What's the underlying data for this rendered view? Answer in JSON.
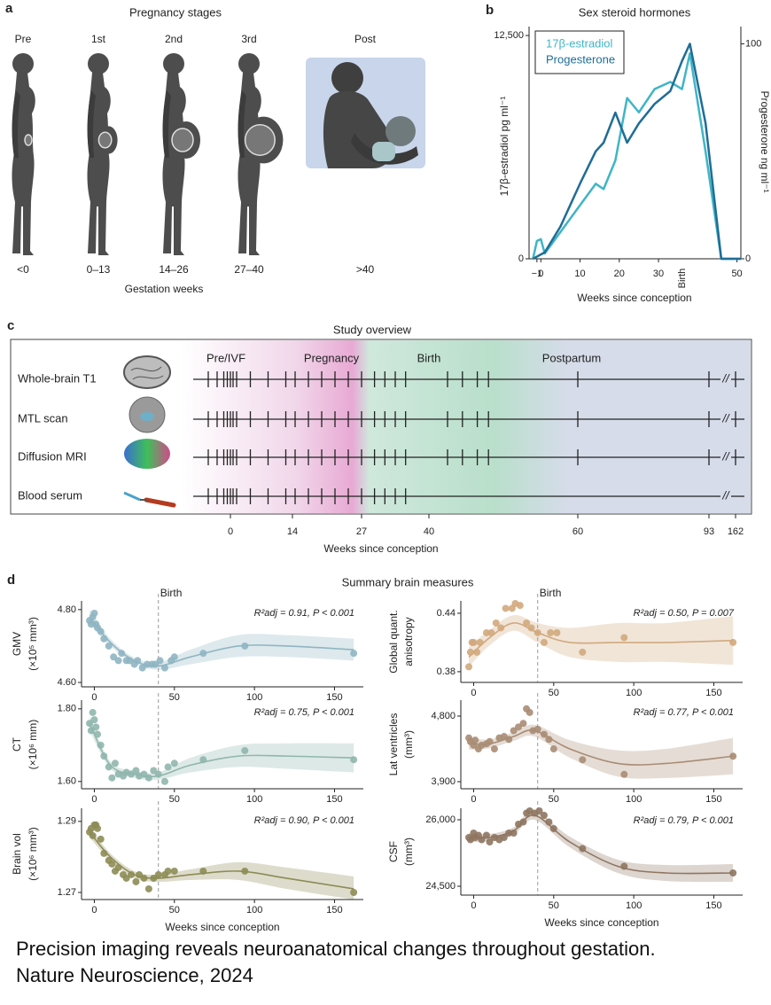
{
  "panel_a": {
    "label": "a",
    "title": "Pregnancy stages",
    "xlabel": "Gestation weeks",
    "stages": [
      {
        "name": "Pre",
        "weeks": "<0"
      },
      {
        "name": "1st",
        "weeks": "0–13"
      },
      {
        "name": "2nd",
        "weeks": "14–26"
      },
      {
        "name": "3rd",
        "weeks": "27–40"
      },
      {
        "name": "Post",
        "weeks": ">40"
      }
    ]
  },
  "panel_c": {
    "label": "c",
    "title": "Study overview",
    "xlabel": "Weeks since conception",
    "phases": [
      "Pre/IVF",
      "Pregnancy",
      "Birth",
      "Postpartum"
    ],
    "xticks": [
      0,
      14,
      27,
      40,
      60,
      93,
      162
    ],
    "rows": [
      {
        "name": "Whole-brain T1",
        "sessions": [
          -5,
          -3,
          -1.5,
          -0.7,
          0,
          0.6,
          1.4,
          4.5,
          8.5,
          12.5,
          14.5,
          17,
          19.5,
          22,
          24.5,
          27,
          29.5,
          31.5,
          33.5,
          35.5,
          42.5,
          44.5,
          46.5,
          48,
          60,
          93,
          162
        ]
      },
      {
        "name": "MTL scan",
        "sessions": [
          -5,
          -3,
          -1.5,
          -0.7,
          0,
          0.6,
          1.4,
          4.5,
          8.5,
          12.5,
          14.5,
          17,
          19.5,
          22,
          24.5,
          27,
          29.5,
          31.5,
          33.5,
          35.5,
          42.5,
          44.5,
          46.5,
          48,
          60,
          93,
          162
        ]
      },
      {
        "name": "Diffusion MRI",
        "sessions": [
          -5,
          -3,
          -1.5,
          -0.7,
          0,
          0.6,
          1.4,
          4.5,
          8.5,
          12.5,
          14.5,
          17,
          19.5,
          22,
          24.5,
          27,
          29.5,
          31.5,
          33.5,
          35.5,
          42.5,
          44.5,
          46.5,
          48,
          60,
          93,
          162
        ]
      },
      {
        "name": "Blood serum",
        "sessions": [
          -5,
          -3,
          -1.5,
          -0.7,
          0,
          0.6,
          1.4,
          4.5,
          8.5,
          12.5,
          14.5,
          17,
          19.5,
          22,
          24.5,
          27,
          29.5,
          31.5,
          33.5,
          35.5
        ]
      }
    ]
  },
  "panel_d": {
    "label": "d",
    "title": "Summary brain measures"
  },
  "caption": [
    "Precision imaging reveals neuroanatomical changes throughout gestation.",
    "Nature Neuroscience, 2024"
  ],
  "chart_data": [
    {
      "type": "line",
      "label": "b",
      "title": "Sex steroid hormones",
      "xlabel": "Weeks since conception",
      "ylabel": "17β-estradiol pg ml⁻¹",
      "y2label": "Progesterone ng ml⁻¹",
      "birth_label": "Birth",
      "xlim": [
        -3,
        51
      ],
      "xticks": [
        {
          "value": -1,
          "label": "−1"
        },
        0,
        10,
        20,
        30,
        50
      ],
      "ylim": [
        0,
        13000
      ],
      "yticks": [
        0,
        {
          "value": 12500,
          "label": "12,500"
        }
      ],
      "y2lim": [
        0,
        108
      ],
      "y2ticks": [
        0,
        100
      ],
      "x": [
        -2,
        -1,
        0,
        1,
        5,
        10,
        14,
        16,
        19,
        22,
        25,
        29,
        33,
        36,
        38,
        42,
        46,
        51
      ],
      "series": [
        {
          "name": "17β-estradiol",
          "color": "#3fb5c6",
          "values": [
            0,
            1000,
            1100,
            300,
            1500,
            3000,
            4200,
            3900,
            5500,
            9000,
            8200,
            9500,
            9900,
            9500,
            11500,
            6000,
            0,
            0
          ]
        },
        {
          "name": "Progesterone",
          "color": "#1f6d96",
          "axis": "y2",
          "values": [
            0,
            1,
            2,
            3,
            15,
            35,
            50,
            54,
            68,
            54,
            63,
            72,
            78,
            92,
            100,
            63,
            0,
            0
          ]
        }
      ]
    },
    {
      "type": "scatter",
      "ylabel": [
        "GMV",
        "(×10⁵ mm³)"
      ],
      "color": "#8fb5c2",
      "annotation": "R²adj = 0.91, P < 0.001",
      "birth": 40,
      "birth_label": "Birth",
      "xlim": [
        -8,
        168
      ],
      "xticks": [
        0,
        50,
        100,
        150
      ],
      "ylim": [
        4.588,
        4.824
      ],
      "yticks": [
        {
          "value": 4.8,
          "label": "4.80"
        },
        {
          "value": 4.6,
          "label": "4.60"
        }
      ],
      "x": [
        -3,
        -2,
        -1,
        0,
        1,
        2,
        4,
        6,
        9,
        12,
        15,
        17,
        20,
        22,
        25,
        27,
        30,
        33,
        36,
        38,
        41,
        44,
        48,
        50,
        68,
        94,
        162
      ],
      "values": [
        4.77,
        4.76,
        4.78,
        4.79,
        4.76,
        4.75,
        4.74,
        4.72,
        4.7,
        4.67,
        4.66,
        4.68,
        4.66,
        4.66,
        4.65,
        4.66,
        4.64,
        4.65,
        4.65,
        4.65,
        4.66,
        4.64,
        4.66,
        4.67,
        4.68,
        4.7,
        4.68
      ],
      "fit": {
        "x": [
          -3,
          10,
          25,
          40,
          60,
          90,
          120,
          162
        ],
        "values": [
          4.78,
          4.71,
          4.66,
          4.645,
          4.67,
          4.7,
          4.7,
          4.69
        ],
        "lower": [
          4.76,
          4.7,
          4.652,
          4.635,
          4.65,
          4.67,
          4.67,
          4.66
        ],
        "upper": [
          4.8,
          4.72,
          4.668,
          4.655,
          4.69,
          4.73,
          4.73,
          4.72
        ]
      }
    },
    {
      "type": "scatter",
      "ylabel": [
        "Global quant.",
        "anisotropy"
      ],
      "color": "#d1a97d",
      "annotation": "R²adj = 0.50, P = 0.007",
      "birth": 40,
      "birth_label": "Birth",
      "xlim": [
        -8,
        168
      ],
      "xticks": [
        0,
        50,
        100,
        150
      ],
      "ylim": [
        0.369,
        0.4527
      ],
      "yticks": [
        0.44,
        0.38
      ],
      "x": [
        -3,
        -2,
        -1,
        0,
        2,
        4,
        8,
        11,
        14,
        17,
        20,
        24,
        26,
        29,
        33,
        36,
        40,
        44,
        48,
        52,
        68,
        94,
        162
      ],
      "values": [
        0.385,
        0.4,
        0.41,
        0.41,
        0.4,
        0.41,
        0.42,
        0.42,
        0.43,
        0.425,
        0.445,
        0.445,
        0.45,
        0.448,
        0.43,
        0.425,
        0.42,
        0.41,
        0.42,
        0.42,
        0.4,
        0.415,
        0.41
      ],
      "fit": {
        "x": [
          -3,
          10,
          25,
          40,
          60,
          90,
          120,
          162
        ],
        "values": [
          0.395,
          0.415,
          0.43,
          0.42,
          0.41,
          0.41,
          0.41,
          0.412
        ],
        "lower": [
          0.385,
          0.407,
          0.422,
          0.41,
          0.395,
          0.39,
          0.39,
          0.387
        ],
        "upper": [
          0.405,
          0.423,
          0.438,
          0.43,
          0.425,
          0.43,
          0.43,
          0.437
        ]
      }
    },
    {
      "type": "scatter",
      "ylabel": [
        "CT",
        "(×10⁶ mm)"
      ],
      "color": "#8fb6ad",
      "annotation": "R²adj = 0.75, P < 0.001",
      "birth": 40,
      "xlim": [
        -8,
        168
      ],
      "xticks": [
        0,
        50,
        100,
        150
      ],
      "ylim": [
        1.58,
        1.824
      ],
      "yticks": [
        {
          "value": 1.8,
          "label": "1.80"
        },
        {
          "value": 1.6,
          "label": "1.60"
        }
      ],
      "x": [
        -3,
        -2,
        -1,
        0,
        1,
        2,
        4,
        6,
        9,
        11,
        13,
        15,
        18,
        20,
        23,
        26,
        28,
        31,
        34,
        37,
        40,
        44,
        46,
        50,
        68,
        94,
        162
      ],
      "values": [
        1.76,
        1.74,
        1.79,
        1.77,
        1.75,
        1.73,
        1.7,
        1.67,
        1.64,
        1.61,
        1.65,
        1.62,
        1.615,
        1.625,
        1.62,
        1.63,
        1.615,
        1.62,
        1.61,
        1.63,
        1.62,
        1.6,
        1.64,
        1.65,
        1.66,
        1.685,
        1.66
      ],
      "fit": {
        "x": [
          -3,
          10,
          25,
          40,
          60,
          90,
          120,
          162
        ],
        "values": [
          1.76,
          1.645,
          1.62,
          1.615,
          1.645,
          1.67,
          1.67,
          1.665
        ],
        "lower": [
          1.74,
          1.635,
          1.61,
          1.605,
          1.625,
          1.64,
          1.635,
          1.625
        ],
        "upper": [
          1.78,
          1.655,
          1.63,
          1.625,
          1.665,
          1.7,
          1.705,
          1.705
        ]
      }
    },
    {
      "type": "scatter",
      "ylabel": [
        "Lat ventricles",
        "(mm³)"
      ],
      "color": "#a88c74",
      "annotation": "R²adj = 0.77, P < 0.001",
      "birth": 40,
      "xlim": [
        -8,
        168
      ],
      "xticks": [
        0,
        50,
        100,
        150
      ],
      "ylim": [
        3803,
        5019
      ],
      "yticks": [
        {
          "value": 4800,
          "label": "4,800"
        },
        {
          "value": 3900,
          "label": "3,900"
        }
      ],
      "x": [
        -3,
        -2,
        0,
        1,
        3,
        5,
        8,
        10,
        13,
        16,
        19,
        22,
        25,
        28,
        31,
        33,
        35,
        37,
        40,
        44,
        47,
        50,
        68,
        94,
        162
      ],
      "values": [
        4500,
        4450,
        4400,
        4470,
        4350,
        4400,
        4420,
        4450,
        4350,
        4500,
        4520,
        4480,
        4600,
        4650,
        4700,
        4900,
        4850,
        4600,
        4620,
        4550,
        4480,
        4350,
        4200,
        4000,
        4250
      ],
      "fit": {
        "x": [
          -3,
          10,
          25,
          38,
          60,
          90,
          120,
          162
        ],
        "values": [
          4420,
          4420,
          4520,
          4600,
          4350,
          4150,
          4150,
          4250
        ],
        "lower": [
          4340,
          4360,
          4460,
          4520,
          4230,
          3970,
          3950,
          4000
        ],
        "upper": [
          4500,
          4480,
          4580,
          4680,
          4470,
          4330,
          4350,
          4500
        ]
      }
    },
    {
      "type": "scatter",
      "ylabel": [
        "Brain vol",
        "(×10⁶ mm³)"
      ],
      "color": "#8d8c55",
      "annotation": "R²adj = 0.90, P < 0.001",
      "birth": 40,
      "xlabel": "Weeks since conception",
      "xlim": [
        -8,
        168
      ],
      "xticks": [
        0,
        50,
        100,
        150
      ],
      "ylim": [
        1.268,
        1.2937
      ],
      "yticks": [
        1.29,
        1.27
      ],
      "x": [
        -3,
        -2,
        -1,
        0,
        1,
        2,
        4,
        6,
        9,
        11,
        13,
        15,
        18,
        20,
        23,
        26,
        28,
        31,
        34,
        37,
        40,
        44,
        46,
        50,
        68,
        94,
        162
      ],
      "values": [
        1.287,
        1.288,
        1.286,
        1.289,
        1.289,
        1.288,
        1.285,
        1.281,
        1.279,
        1.278,
        1.276,
        1.277,
        1.275,
        1.274,
        1.275,
        1.273,
        1.275,
        1.274,
        1.271,
        1.274,
        1.275,
        1.275,
        1.276,
        1.276,
        1.276,
        1.276,
        1.27
      ],
      "fit": {
        "x": [
          -3,
          10,
          25,
          40,
          60,
          90,
          120,
          162
        ],
        "values": [
          1.287,
          1.28,
          1.275,
          1.274,
          1.275,
          1.276,
          1.274,
          1.271
        ],
        "lower": [
          1.2855,
          1.279,
          1.274,
          1.273,
          1.2735,
          1.2735,
          1.271,
          1.268
        ],
        "upper": [
          1.2885,
          1.281,
          1.276,
          1.275,
          1.2765,
          1.2785,
          1.277,
          1.2745
        ]
      }
    },
    {
      "type": "scatter",
      "ylabel": [
        "CSF",
        "(mm³)"
      ],
      "color": "#8e7560",
      "annotation": "R²adj = 0.79, P < 0.001",
      "birth": 40,
      "xlabel": "Weeks since conception",
      "xlim": [
        -8,
        168
      ],
      "xticks": [
        0,
        50,
        100,
        150
      ],
      "ylim": [
        24300,
        26260
      ],
      "yticks": [
        {
          "value": 26000,
          "label": "26,000"
        },
        {
          "value": 24500,
          "label": "24,500"
        }
      ],
      "x": [
        -3,
        -2,
        0,
        1,
        3,
        5,
        8,
        10,
        13,
        16,
        19,
        22,
        25,
        28,
        31,
        33,
        35,
        38,
        41,
        44,
        47,
        50,
        68,
        94,
        162
      ],
      "values": [
        25600,
        25550,
        25700,
        25600,
        25650,
        25550,
        25650,
        25500,
        25600,
        25550,
        25600,
        25700,
        25700,
        25900,
        25950,
        26150,
        26200,
        26150,
        26200,
        26100,
        25950,
        25800,
        25350,
        24950,
        24800
      ],
      "fit": {
        "x": [
          -3,
          10,
          25,
          38,
          60,
          90,
          120,
          162
        ],
        "values": [
          25600,
          25600,
          25750,
          26100,
          25500,
          24950,
          24800,
          24800
        ],
        "lower": [
          25500,
          25520,
          25670,
          26000,
          25380,
          24800,
          24620,
          24600
        ],
        "upper": [
          25700,
          25680,
          25830,
          26200,
          25620,
          25100,
          24980,
          25000
        ]
      }
    }
  ]
}
